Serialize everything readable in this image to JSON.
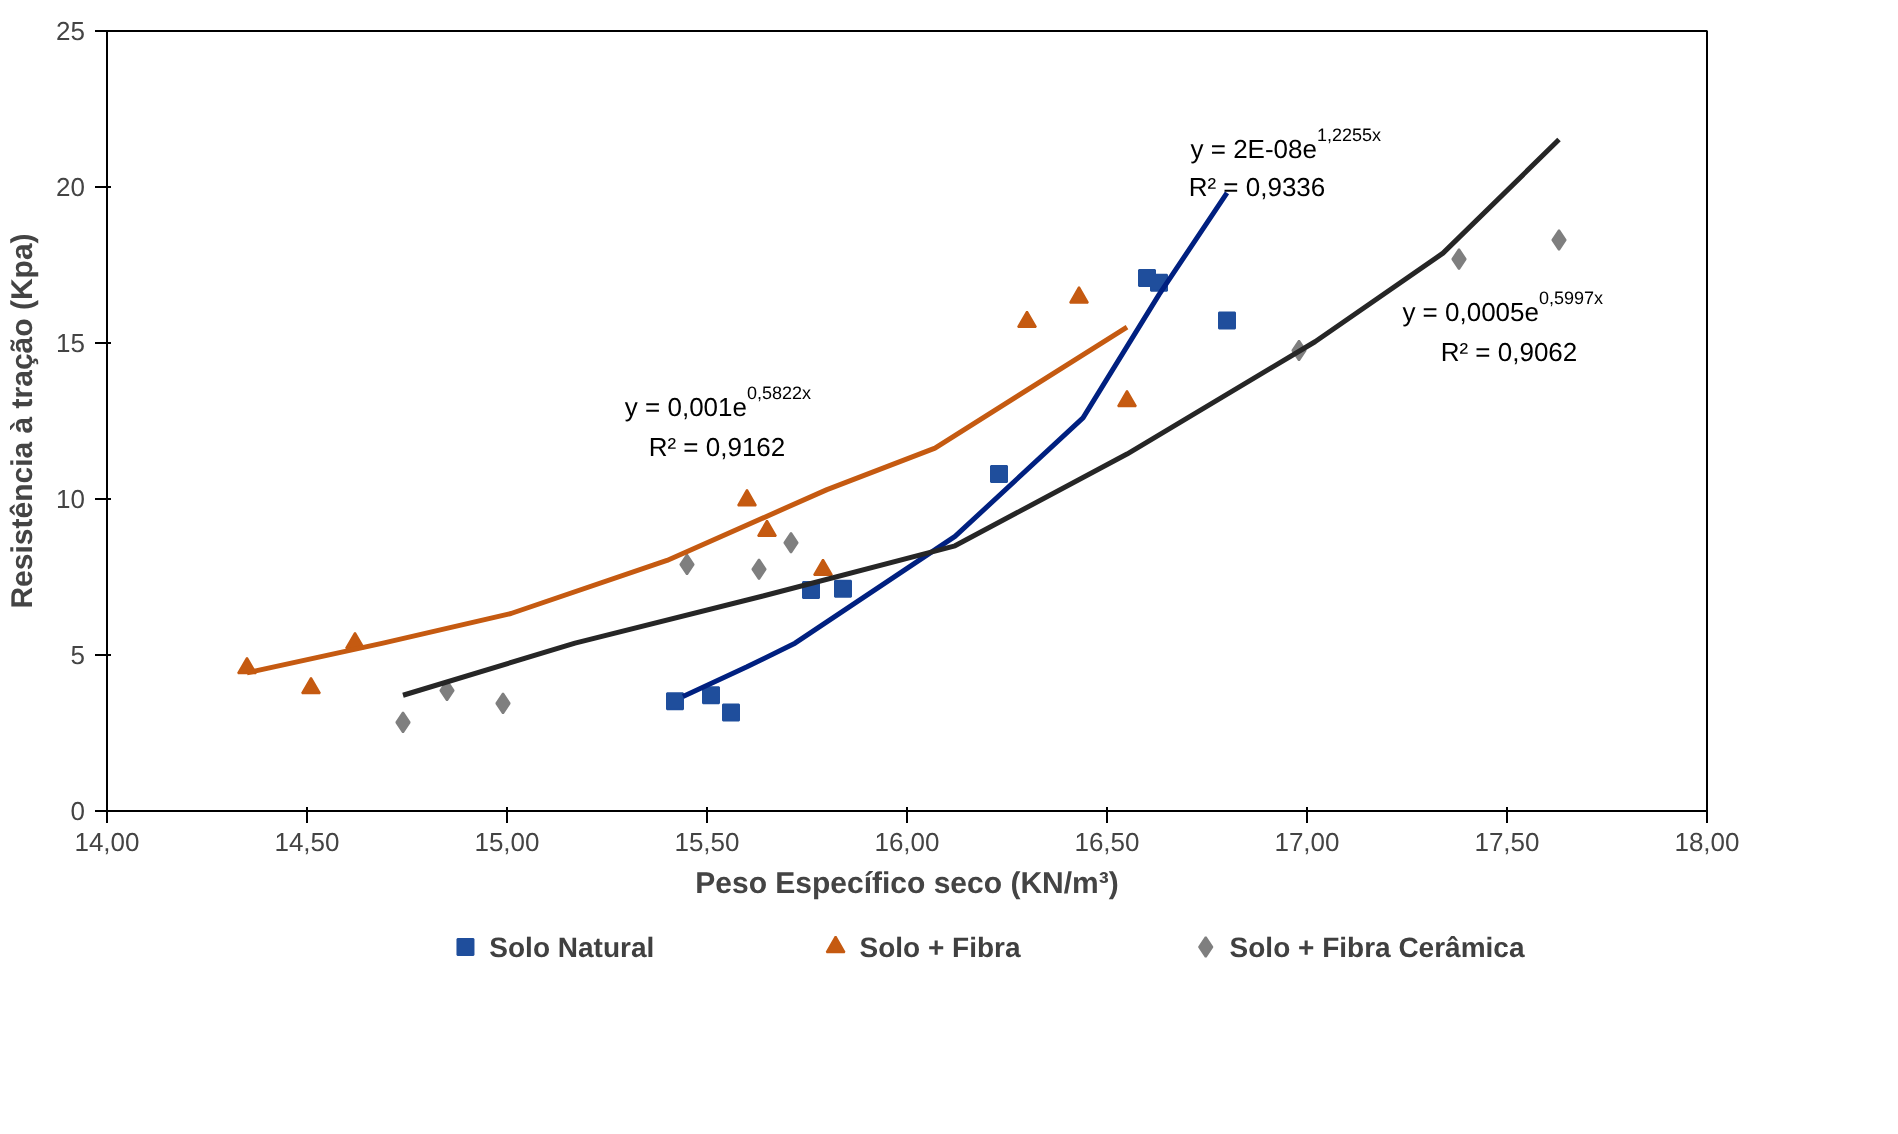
{
  "chart_data": {
    "type": "scatter",
    "xlabel": "Peso Específico seco (KN/m³)",
    "ylabel": "Resistência à tração (Kpa)",
    "xlim": [
      14,
      18
    ],
    "ylim": [
      0,
      25
    ],
    "xticks": [
      {
        "value": 14,
        "label": "14,00"
      },
      {
        "value": 14.5,
        "label": "14,50"
      },
      {
        "value": 15,
        "label": "15,00"
      },
      {
        "value": 15.5,
        "label": "15,50"
      },
      {
        "value": 16,
        "label": "16,00"
      },
      {
        "value": 16.5,
        "label": "16,50"
      },
      {
        "value": 17,
        "label": "17,00"
      },
      {
        "value": 17.5,
        "label": "17,50"
      },
      {
        "value": 18,
        "label": "18,00"
      }
    ],
    "yticks": [
      0,
      5,
      10,
      15,
      20,
      25
    ],
    "grid": false,
    "legend": "bottom",
    "series": [
      {
        "name": "Solo Natural",
        "color": "#1f4e9c",
        "marker": "square",
        "x": [
          15.42,
          15.51,
          15.56,
          15.76,
          15.84,
          16.23,
          16.6,
          16.63,
          16.8
        ],
        "values": [
          3.52,
          3.71,
          3.16,
          7.08,
          7.12,
          10.8,
          17.08,
          16.93,
          15.72
        ]
      },
      {
        "name": "Solo + Fibra",
        "color": "#c55a11",
        "marker": "triangle",
        "x": [
          14.35,
          14.51,
          14.62,
          15.6,
          15.65,
          15.79,
          16.3,
          16.43,
          16.55
        ],
        "values": [
          4.58,
          3.94,
          5.38,
          9.96,
          8.98,
          7.73,
          15.68,
          16.46,
          13.14
        ]
      },
      {
        "name": "Solo + Fibra Cerâmica",
        "color": "#7f7f7f",
        "marker": "diamond",
        "x": [
          14.74,
          14.85,
          14.99,
          15.45,
          15.63,
          15.71,
          16.98,
          17.38,
          17.63
        ],
        "values": [
          2.84,
          3.86,
          3.45,
          7.9,
          7.75,
          8.6,
          14.76,
          17.69,
          18.3
        ]
      },
      {
        "type": "line",
        "color": "#002080",
        "marker": "none",
        "x": [
          15.44,
          15.6,
          15.72,
          16.12,
          16.44,
          16.63,
          16.8
        ],
        "values": [
          3.67,
          4.62,
          5.38,
          8.8,
          12.6,
          16.55,
          19.81
        ]
      },
      {
        "type": "line",
        "color": "#c55a11",
        "marker": "none",
        "x": [
          14.35,
          14.69,
          15.01,
          15.4,
          15.8,
          16.07,
          16.55
        ],
        "values": [
          4.43,
          5.38,
          6.33,
          8.03,
          10.3,
          11.63,
          15.51
        ]
      },
      {
        "type": "line",
        "color": "#262626",
        "marker": "none",
        "x": [
          14.74,
          15.17,
          15.64,
          16.12,
          16.55,
          17.02,
          17.34,
          17.63
        ],
        "values": [
          3.71,
          5.38,
          6.89,
          8.5,
          11.44,
          15.04,
          17.88,
          21.52
        ]
      }
    ],
    "annotations": [
      "y = 2E-08e$^{1,2255x}$",
      "R² = 0,9336",
      "y = 0,001e$^{0,5822x}$",
      "R² = 0,9162",
      "y = 0,0005e$^{0,5997x}$",
      "R² = 0,9062"
    ]
  }
}
